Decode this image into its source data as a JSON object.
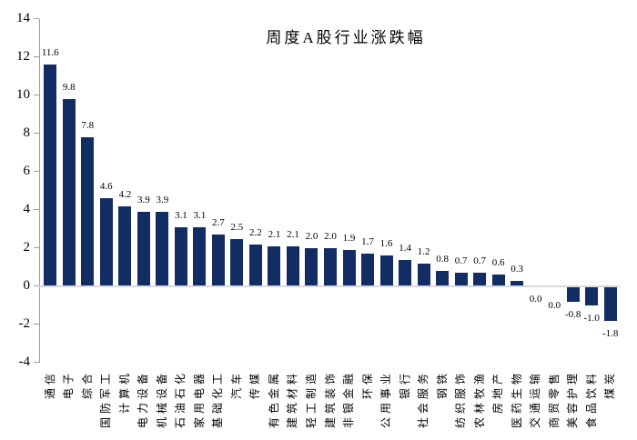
{
  "chart_data": {
    "type": "bar",
    "title": "周度A股行业涨跌幅",
    "categories": [
      "通信",
      "电子",
      "综合",
      "国防军工",
      "计算机",
      "电力设备",
      "机械设备",
      "石油石化",
      "家用电器",
      "基础化工",
      "汽车",
      "传媒",
      "有色金属",
      "建筑材料",
      "轻工制造",
      "建筑装饰",
      "非银金融",
      "环保",
      "公用事业",
      "银行",
      "社会服务",
      "钢铁",
      "纺织服饰",
      "农林牧渔",
      "房地产",
      "医药生物",
      "交通运输",
      "商贸零售",
      "美容护理",
      "食品饮料",
      "煤炭"
    ],
    "values": [
      11.6,
      9.8,
      7.8,
      4.6,
      4.2,
      3.9,
      3.9,
      3.1,
      3.1,
      2.7,
      2.5,
      2.2,
      2.1,
      2.1,
      2.0,
      2.0,
      1.9,
      1.7,
      1.6,
      1.4,
      1.2,
      0.8,
      0.7,
      0.7,
      0.6,
      0.3,
      0.0,
      0.0,
      -0.8,
      -1.0,
      -1.8
    ],
    "value_label_decimals": 1,
    "xlabel": "",
    "ylabel": "",
    "ylim": [
      -4,
      14
    ],
    "yticks": [
      14,
      12,
      10,
      8,
      6,
      4,
      2,
      0,
      -2,
      -4
    ],
    "grid": "none",
    "legend": "none",
    "data_label_position": "outside-end",
    "bar_color": "#122C64",
    "axis_color": "#9C9C9C",
    "zero_line_color": "#D9D9D9",
    "text_color": "#000000"
  }
}
